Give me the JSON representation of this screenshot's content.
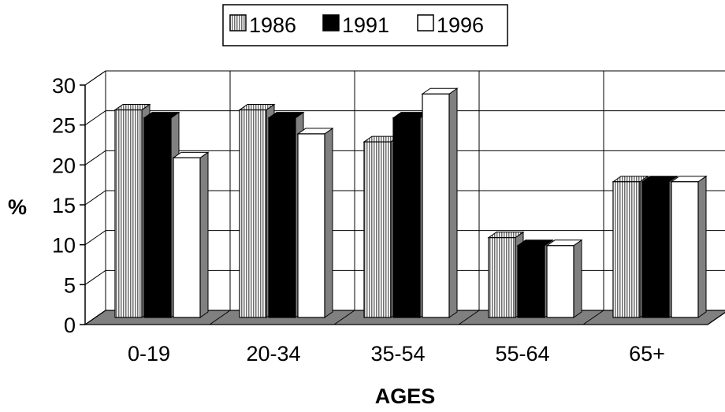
{
  "chart_data": {
    "type": "bar",
    "categories": [
      "0-19",
      "20-34",
      "35-54",
      "55-64",
      "65+"
    ],
    "series": [
      {
        "name": "1986",
        "values": [
          26,
          26,
          22,
          10,
          17
        ],
        "fill": "striped-gray"
      },
      {
        "name": "1991",
        "values": [
          25,
          25,
          25,
          9,
          17
        ],
        "fill": "#000000"
      },
      {
        "name": "1996",
        "values": [
          20,
          23,
          28,
          9,
          17
        ],
        "fill": "#ffffff"
      }
    ],
    "xlabel": "AGES",
    "ylabel": "%",
    "ylim": [
      0,
      30
    ],
    "yticks": [
      0,
      5,
      10,
      15,
      20,
      25,
      30
    ],
    "grid": true,
    "legend_position": "top-center",
    "three_d": true,
    "colors": {
      "floor": "#808080",
      "side": "#808080",
      "outline": "#000000"
    }
  }
}
